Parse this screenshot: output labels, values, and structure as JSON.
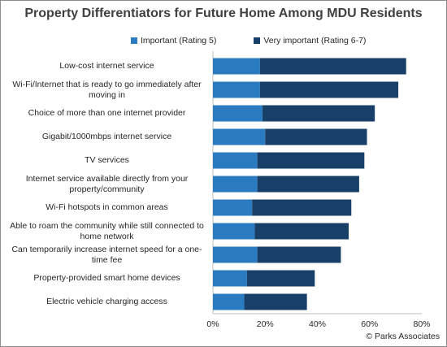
{
  "chart_data": {
    "type": "bar",
    "orientation": "horizontal",
    "stacked": true,
    "title": "Property Differentiators for Future Home Among MDU Residents",
    "categories": [
      "Low-cost internet service",
      "Wi-Fi/Internet that is ready to go immediately after moving in",
      "Choice of more than one internet provider",
      "Gigabit/1000mbps internet service",
      "TV services",
      "Internet service available directly from your property/community",
      "Wi-Fi hotspots in common areas",
      "Able to roam the community while still connected to home network",
      "Can temporarily increase internet speed for a one-time fee",
      "Property-provided smart home devices",
      "Electric vehicle charging access"
    ],
    "series": [
      {
        "name": "Important (Rating 5)",
        "color": "#2a7bc0",
        "values": [
          18,
          18,
          19,
          20,
          17,
          17,
          15,
          16,
          17,
          13,
          12
        ]
      },
      {
        "name": "Very important  (Rating 6-7)",
        "color": "#183f67",
        "values": [
          56,
          53,
          43,
          39,
          41,
          39,
          38,
          36,
          32,
          26,
          24
        ]
      }
    ],
    "xlim": [
      0,
      80
    ],
    "xticks": [
      "0%",
      "20%",
      "40%",
      "60%",
      "80%"
    ],
    "tick_values": [
      0,
      20,
      40,
      60,
      80
    ],
    "grid": false,
    "legend_position": "top"
  },
  "credit": "© Parks Associates"
}
